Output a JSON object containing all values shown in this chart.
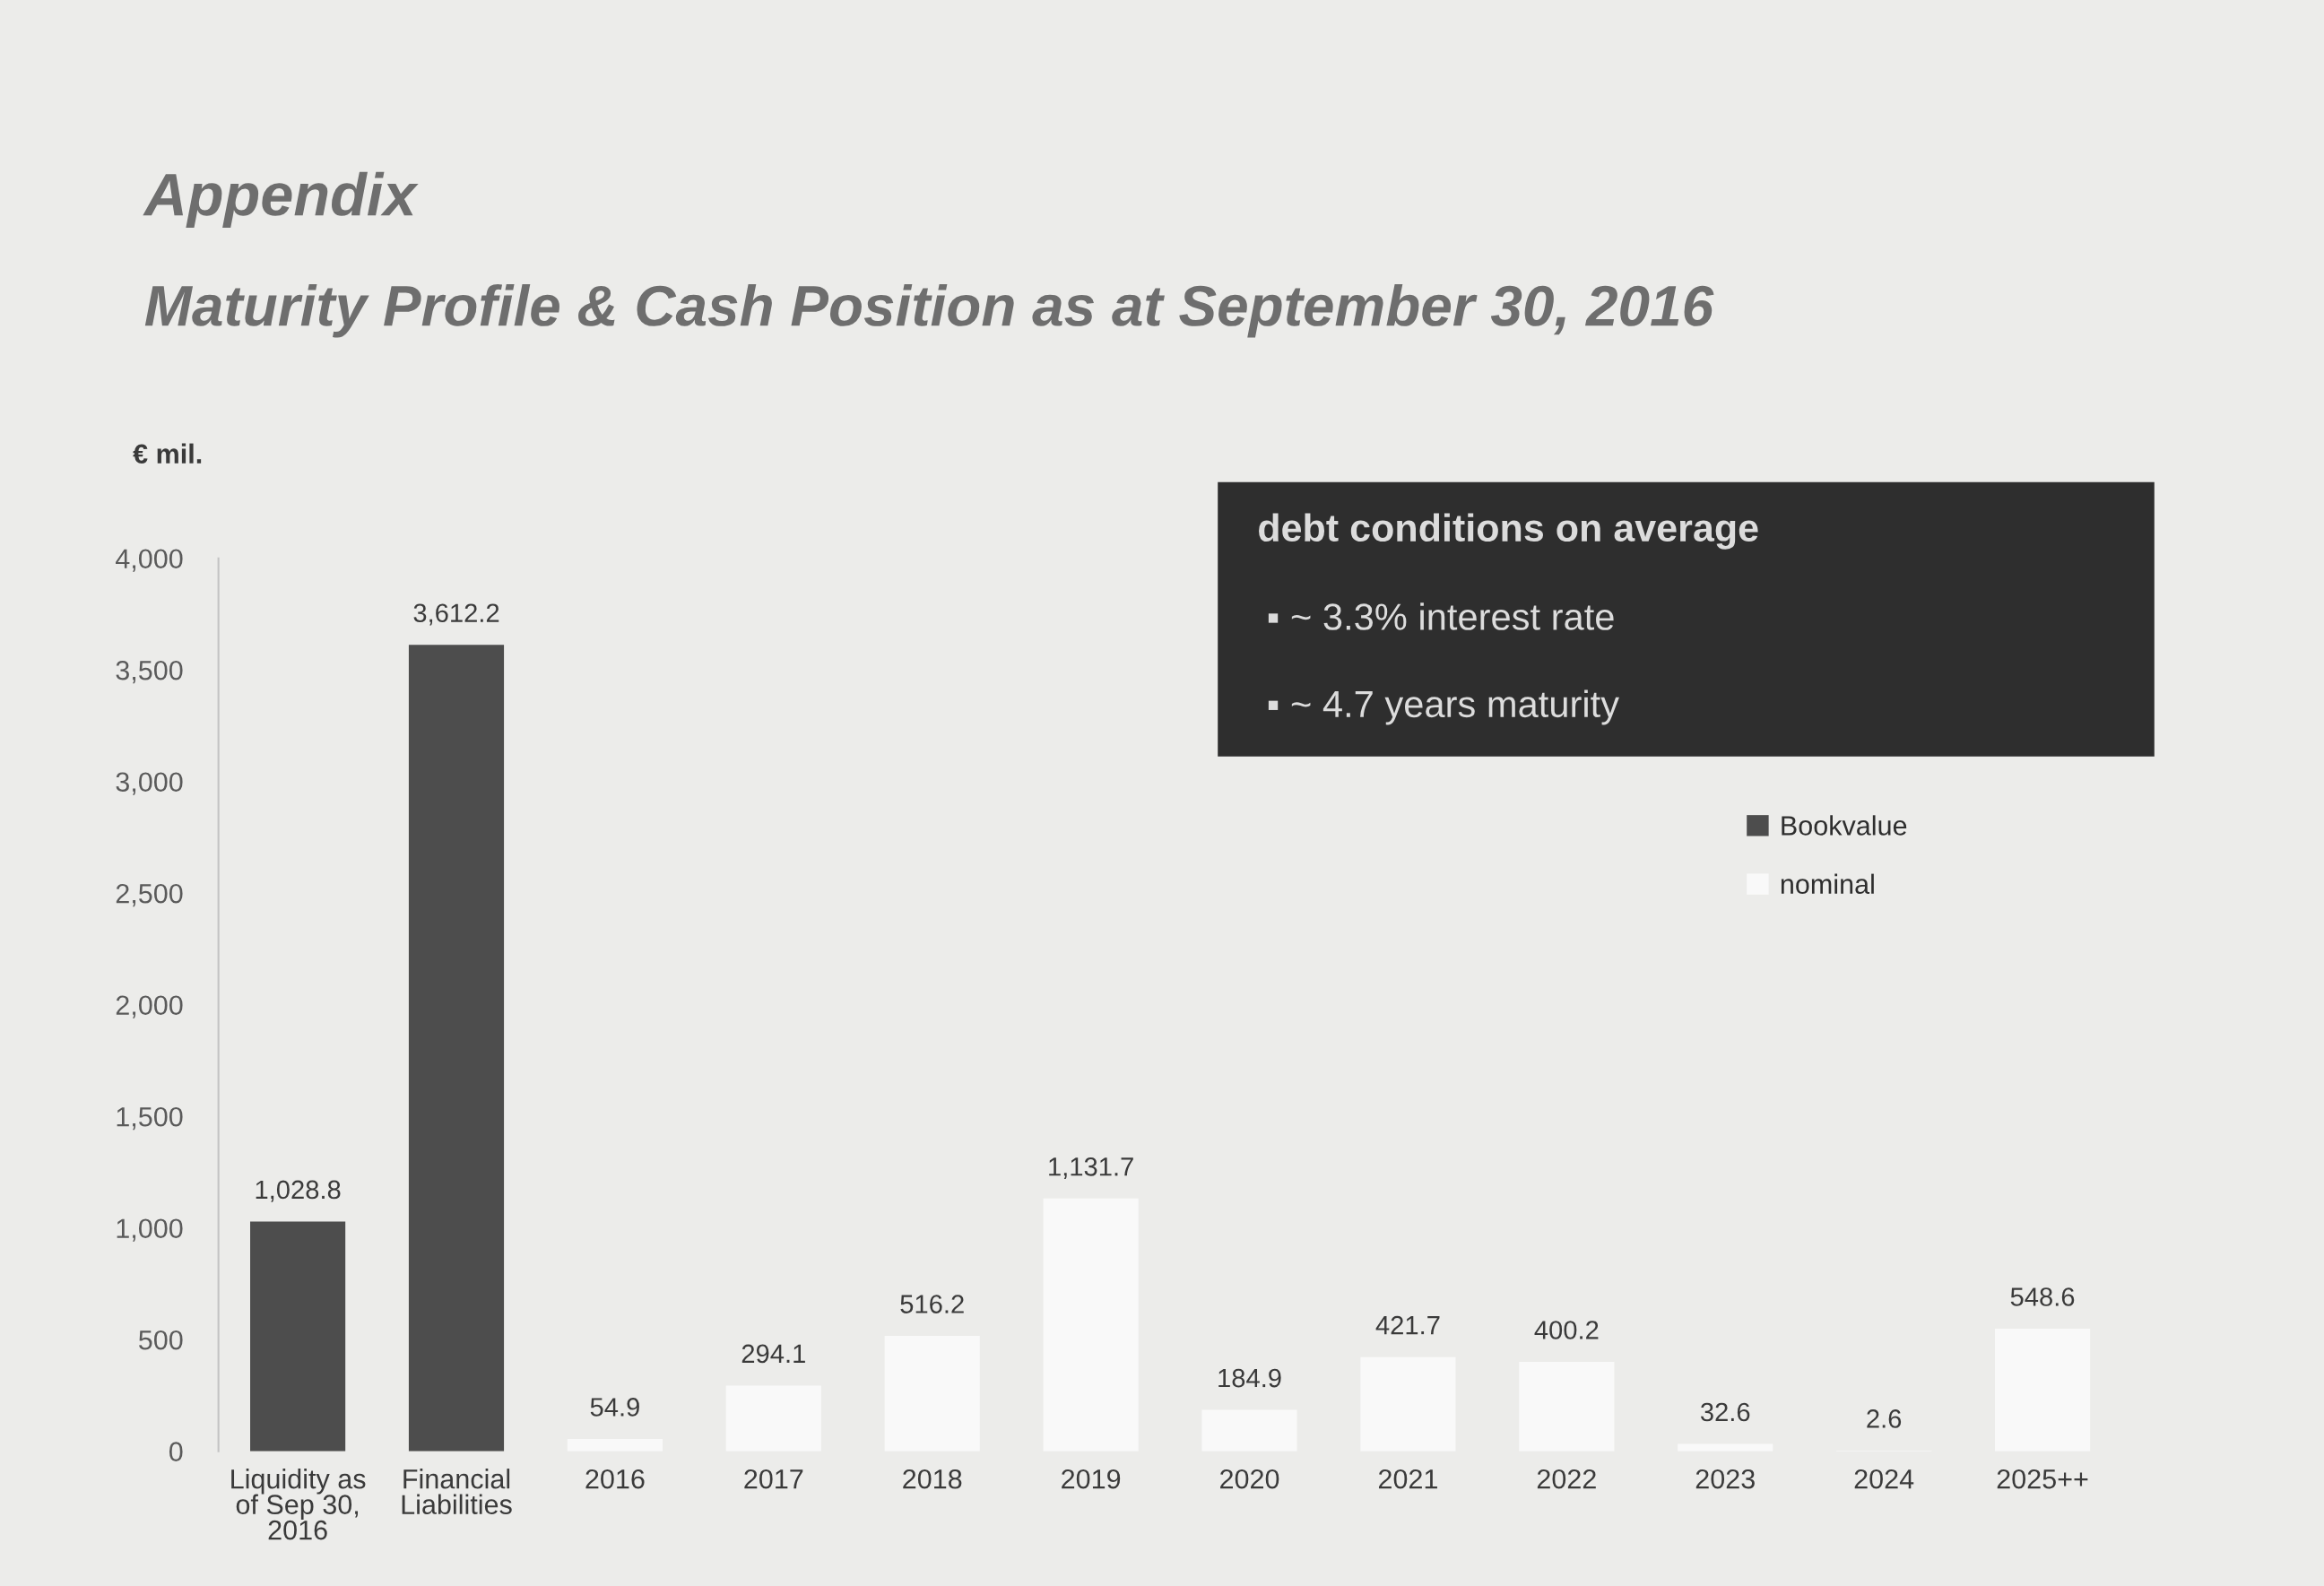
{
  "chart_data": {
    "type": "bar",
    "title": "Appendix",
    "subtitle": "Maturity Profile & Cash Position as at September 30, 2016",
    "ylabel": "€ mil.",
    "categories": [
      "Liquidity as of Sep 30, 2016",
      "Financial Liabilities",
      "2016",
      "2017",
      "2018",
      "2019",
      "2020",
      "2021",
      "2022",
      "2023",
      "2024",
      "2025++"
    ],
    "stacked": true,
    "series": [
      {
        "name": "Bookvalue",
        "color": "#4d4d4d",
        "values": [
          1028.8,
          3612.2,
          null,
          null,
          null,
          null,
          null,
          null,
          null,
          null,
          null,
          null
        ],
        "value_labels": [
          "1,028.8",
          "3,612.2",
          null,
          null,
          null,
          null,
          null,
          null,
          null,
          null,
          null,
          null
        ]
      },
      {
        "name": "nominal",
        "color": "#f9f9f9",
        "values": [
          null,
          null,
          54.9,
          294.1,
          516.2,
          1131.7,
          184.9,
          421.7,
          400.2,
          32.6,
          2.6,
          548.6
        ],
        "value_labels": [
          null,
          null,
          "54.9",
          "294.1",
          "516.2",
          "1,131.7",
          "184.9",
          "421.7",
          "400.2",
          "32.6",
          "2.6",
          "548.6"
        ]
      }
    ],
    "ylim": [
      0,
      4000
    ],
    "yticks": [
      0,
      500,
      {
        "value": 1000,
        "label": "1,000"
      },
      {
        "value": 1500,
        "label": "1,500"
      },
      {
        "value": 2000,
        "label": "2,000"
      },
      {
        "value": 2500,
        "label": "2,500"
      },
      {
        "value": 3000,
        "label": "3,000"
      },
      {
        "value": 3500,
        "label": "3,500"
      },
      {
        "value": 4000,
        "label": "4,000"
      }
    ],
    "legend": "top right",
    "annotations": [
      "debt conditions on average",
      "▪ ~ 3.3% interest rate",
      "▪ ~ 4.7 years maturity"
    ]
  }
}
